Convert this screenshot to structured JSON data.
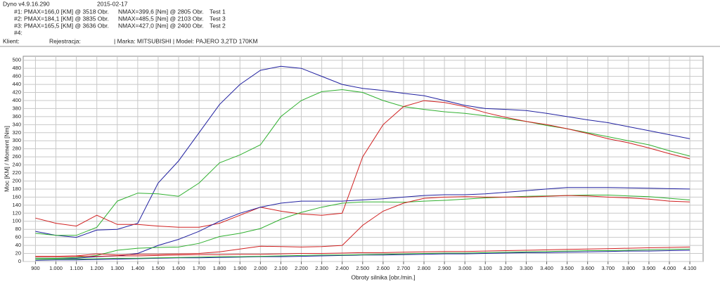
{
  "chart_data": {
    "type": "line",
    "title": "Dyno v4.9.16.290",
    "date": "2015-02-17",
    "runs": [
      {
        "id": "#1:",
        "pmax": "PMAX=166,0 [KM] @ 3518 Obr.",
        "nmax": "NMAX=399,6 [Nm] @ 2805 Obr.",
        "name": "Test 1"
      },
      {
        "id": "#2:",
        "pmax": "PMAX=184,1 [KM] @ 3835 Obr.",
        "nmax": "NMAX=485,5 [Nm] @ 2103 Obr.",
        "name": "Test 3"
      },
      {
        "id": "#3:",
        "pmax": "PMAX=165,5 [KM] @ 3636 Obr.",
        "nmax": "NMAX=427,0 [Nm] @ 2400 Obr.",
        "name": "Test  2"
      },
      {
        "id": "#4:"
      }
    ],
    "client": "Klient:",
    "registration": "Rejestracja:",
    "vehicle": "| Marka: MITSUBISHI | Model: PAJERO 3,2TD 170KM",
    "ylabel": "Moc [KM] / Moment [Nm]",
    "xlabel": "Obroty silnika [obr./min.]",
    "grid": true,
    "xlim": [
      840,
      4165
    ],
    "ylim": [
      0,
      510
    ],
    "xticks": [
      900,
      {
        "value": 1000,
        "label": "1.000"
      },
      {
        "value": 1100,
        "label": "1.100"
      },
      {
        "value": 1200,
        "label": "1.200"
      },
      {
        "value": 1300,
        "label": "1.300"
      },
      {
        "value": 1400,
        "label": "1.400"
      },
      {
        "value": 1500,
        "label": "1.500"
      },
      {
        "value": 1600,
        "label": "1.600"
      },
      {
        "value": 1700,
        "label": "1.700"
      },
      {
        "value": 1800,
        "label": "1.800"
      },
      {
        "value": 1900,
        "label": "1.900"
      },
      {
        "value": 2000,
        "label": "2.000"
      },
      {
        "value": 2100,
        "label": "2.100"
      },
      {
        "value": 2200,
        "label": "2.200"
      },
      {
        "value": 2300,
        "label": "2.300"
      },
      {
        "value": 2400,
        "label": "2.400"
      },
      {
        "value": 2500,
        "label": "2.500"
      },
      {
        "value": 2600,
        "label": "2.600"
      },
      {
        "value": 2700,
        "label": "2.700"
      },
      {
        "value": 2800,
        "label": "2.800"
      },
      {
        "value": 2900,
        "label": "2.900"
      },
      {
        "value": 3000,
        "label": "3.000"
      },
      {
        "value": 3100,
        "label": "3.100"
      },
      {
        "value": 3200,
        "label": "3.200"
      },
      {
        "value": 3300,
        "label": "3.300"
      },
      {
        "value": 3400,
        "label": "3.400"
      },
      {
        "value": 3500,
        "label": "3.500"
      },
      {
        "value": 3600,
        "label": "3.600"
      },
      {
        "value": 3700,
        "label": "3.700"
      },
      {
        "value": 3800,
        "label": "3.800"
      },
      {
        "value": 3900,
        "label": "3.900"
      },
      {
        "value": 4000,
        "label": "4.000"
      },
      {
        "value": 4100,
        "label": "4.100"
      }
    ],
    "yticks": [
      0,
      20,
      40,
      60,
      80,
      100,
      120,
      140,
      160,
      180,
      200,
      220,
      240,
      260,
      280,
      300,
      320,
      340,
      360,
      380,
      400,
      420,
      440,
      460,
      480,
      500
    ],
    "x": [
      900,
      1000,
      1100,
      1200,
      1300,
      1400,
      1500,
      1600,
      1700,
      1800,
      1900,
      2000,
      2100,
      2200,
      2300,
      2400,
      2500,
      2600,
      2700,
      2800,
      2900,
      3000,
      3100,
      3200,
      3300,
      3400,
      3500,
      3600,
      3700,
      3800,
      3900,
      4000,
      4100
    ],
    "series": [
      {
        "color": "#2020a0",
        "values": [
          75,
          65,
          60,
          78,
          80,
          95,
          195,
          250,
          320,
          390,
          440,
          475,
          485,
          480,
          460,
          440,
          430,
          425,
          418,
          412,
          400,
          388,
          380,
          378,
          375,
          368,
          360,
          352,
          345,
          335,
          325,
          315,
          305
        ]
      },
      {
        "color": "#30b030",
        "values": [
          70,
          65,
          65,
          85,
          150,
          170,
          168,
          162,
          195,
          245,
          265,
          290,
          360,
          400,
          422,
          427,
          420,
          400,
          385,
          378,
          372,
          368,
          362,
          355,
          348,
          338,
          330,
          320,
          310,
          300,
          290,
          275,
          262
        ]
      },
      {
        "color": "#d02020",
        "values": [
          108,
          95,
          88,
          115,
          92,
          92,
          88,
          85,
          85,
          95,
          115,
          135,
          125,
          118,
          115,
          120,
          260,
          340,
          385,
          399.6,
          395,
          385,
          370,
          358,
          348,
          340,
          330,
          318,
          305,
          295,
          282,
          268,
          255
        ]
      },
      {
        "color": "#2020a0",
        "values": [
          8,
          8,
          8,
          12,
          14,
          20,
          40,
          55,
          75,
          100,
          120,
          135,
          145,
          150,
          150,
          150,
          153,
          156,
          160,
          164,
          166,
          166,
          168,
          172,
          176,
          180,
          184,
          184,
          184,
          183,
          182,
          181,
          180
        ]
      },
      {
        "color": "#30b030",
        "values": [
          8,
          8,
          10,
          15,
          28,
          33,
          35,
          36,
          45,
          62,
          70,
          82,
          105,
          122,
          135,
          145,
          148,
          148,
          147,
          150,
          152,
          155,
          158,
          160,
          162,
          163,
          164,
          165,
          165,
          163,
          161,
          157,
          153
        ]
      },
      {
        "color": "#d02020",
        "values": [
          13,
          13,
          14,
          19,
          16,
          18,
          18,
          19,
          20,
          24,
          31,
          38,
          37,
          36,
          37,
          40,
          90,
          125,
          145,
          157,
          160,
          161,
          160,
          160,
          160,
          162,
          164,
          163,
          160,
          158,
          155,
          150,
          148
        ]
      },
      {
        "color": "#2020a0",
        "values": [
          3,
          4,
          4,
          5,
          6,
          7,
          8,
          9,
          9,
          10,
          11,
          12,
          12,
          13,
          14,
          15,
          16,
          16,
          17,
          18,
          19,
          19,
          20,
          21,
          22,
          22,
          23,
          24,
          25,
          26,
          26,
          27,
          28
        ]
      },
      {
        "color": "#30b030",
        "values": [
          5,
          6,
          6,
          7,
          8,
          8,
          9,
          10,
          11,
          12,
          12,
          13,
          14,
          15,
          16,
          16,
          17,
          18,
          19,
          20,
          21,
          21,
          22,
          23,
          24,
          25,
          26,
          27,
          27,
          28,
          29,
          30,
          31
        ]
      },
      {
        "color": "#d02020",
        "values": [
          12,
          12,
          13,
          13,
          14,
          14,
          15,
          16,
          17,
          17,
          18,
          18,
          19,
          20,
          20,
          21,
          22,
          22,
          23,
          24,
          25,
          25,
          26,
          27,
          28,
          29,
          30,
          31,
          32,
          33,
          34,
          35,
          36
        ]
      }
    ]
  }
}
